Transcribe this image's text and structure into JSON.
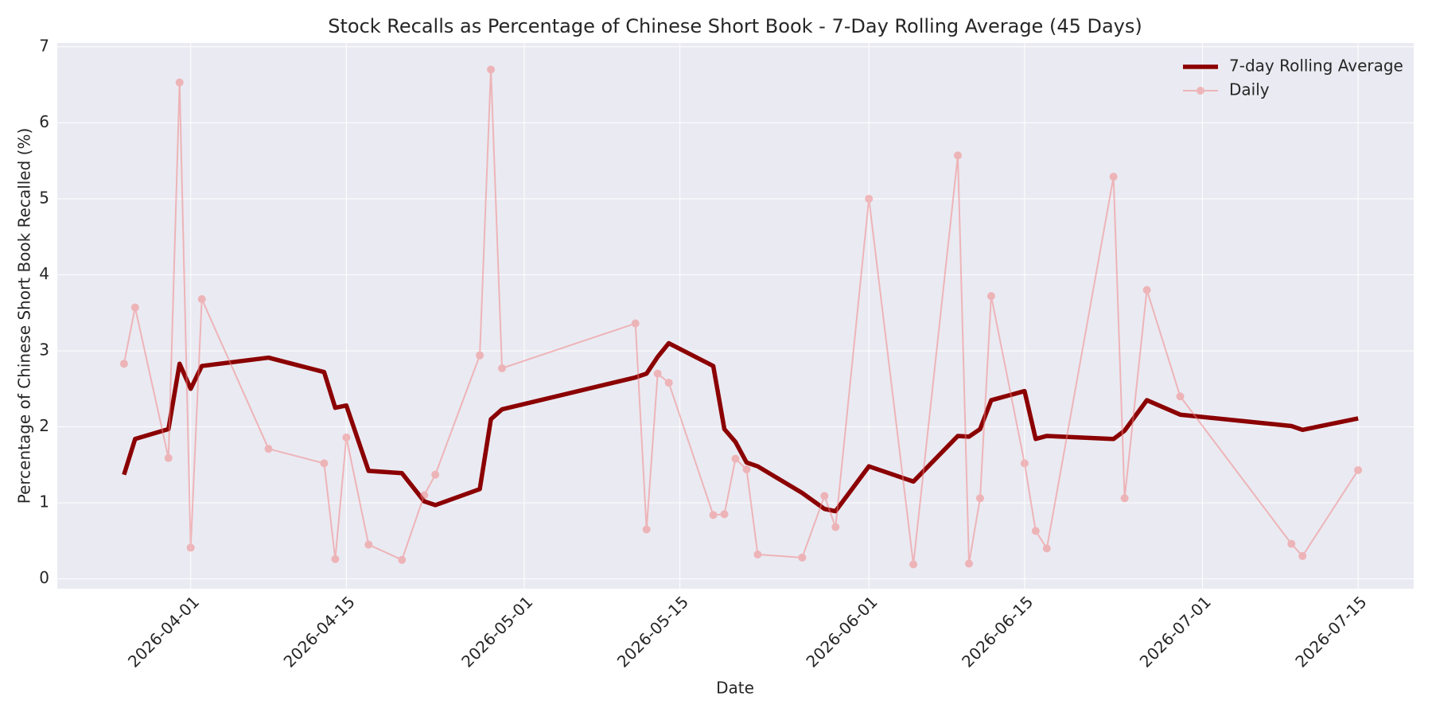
{
  "chart_data": {
    "type": "line",
    "title": "Stock Recalls as Percentage of Chinese Short Book - 7-Day Rolling Average (45 Days)",
    "xlabel": "Date",
    "ylabel": "Percentage of Chinese Short Book Recalled (%)",
    "x": [
      "2026-03-26",
      "2026-03-27",
      "2026-03-30",
      "2026-03-31",
      "2026-04-01",
      "2026-04-02",
      "2026-04-08",
      "2026-04-13",
      "2026-04-14",
      "2026-04-15",
      "2026-04-17",
      "2026-04-20",
      "2026-04-22",
      "2026-04-23",
      "2026-04-27",
      "2026-04-28",
      "2026-04-29",
      "2026-05-11",
      "2026-05-12",
      "2026-05-13",
      "2026-05-14",
      "2026-05-18",
      "2026-05-19",
      "2026-05-20",
      "2026-05-21",
      "2026-05-22",
      "2026-05-26",
      "2026-05-28",
      "2026-05-29",
      "2026-06-01",
      "2026-06-05",
      "2026-06-09",
      "2026-06-10",
      "2026-06-11",
      "2026-06-12",
      "2026-06-15",
      "2026-06-16",
      "2026-06-17",
      "2026-06-23",
      "2026-06-24",
      "2026-06-26",
      "2026-06-29",
      "2026-07-09",
      "2026-07-10",
      "2026-07-15"
    ],
    "series": [
      {
        "name": "7-day Rolling Average",
        "color": "#8b0000",
        "markers": false,
        "values": [
          1.37,
          1.84,
          1.97,
          2.83,
          2.5,
          2.8,
          2.91,
          2.72,
          2.25,
          2.28,
          1.42,
          1.39,
          1.02,
          0.97,
          1.18,
          2.1,
          2.23,
          2.65,
          2.7,
          2.92,
          3.1,
          2.8,
          1.97,
          1.8,
          1.53,
          1.48,
          1.13,
          0.92,
          0.89,
          1.48,
          1.28,
          1.88,
          1.87,
          1.97,
          2.35,
          2.47,
          1.84,
          1.88,
          1.84,
          1.95,
          2.35,
          2.16,
          2.01,
          1.96,
          2.11
        ]
      },
      {
        "name": "Daily",
        "color": "#f08080",
        "markers": true,
        "values": [
          2.83,
          3.57,
          1.59,
          6.53,
          0.41,
          3.68,
          1.71,
          1.52,
          0.26,
          1.86,
          0.45,
          0.25,
          1.1,
          1.37,
          2.94,
          6.7,
          2.77,
          3.36,
          0.65,
          2.7,
          2.58,
          0.84,
          0.85,
          1.58,
          1.44,
          0.32,
          0.28,
          1.09,
          0.68,
          5.0,
          0.19,
          5.57,
          0.2,
          1.06,
          3.72,
          1.52,
          0.63,
          0.4,
          5.29,
          1.06,
          3.8,
          2.4,
          0.46,
          0.3,
          1.43
        ]
      }
    ],
    "xlim": [
      "2026-03-20",
      "2026-07-20"
    ],
    "xticks": [
      "2026-04-01",
      "2026-04-15",
      "2026-05-01",
      "2026-05-15",
      "2026-06-01",
      "2026-06-15",
      "2026-07-01",
      "2026-07-15"
    ],
    "ylim": [
      -0.13,
      7.05
    ],
    "yticks": [
      0,
      1,
      2,
      3,
      4,
      5,
      6,
      7
    ],
    "grid": true,
    "legend": "upper-right"
  }
}
